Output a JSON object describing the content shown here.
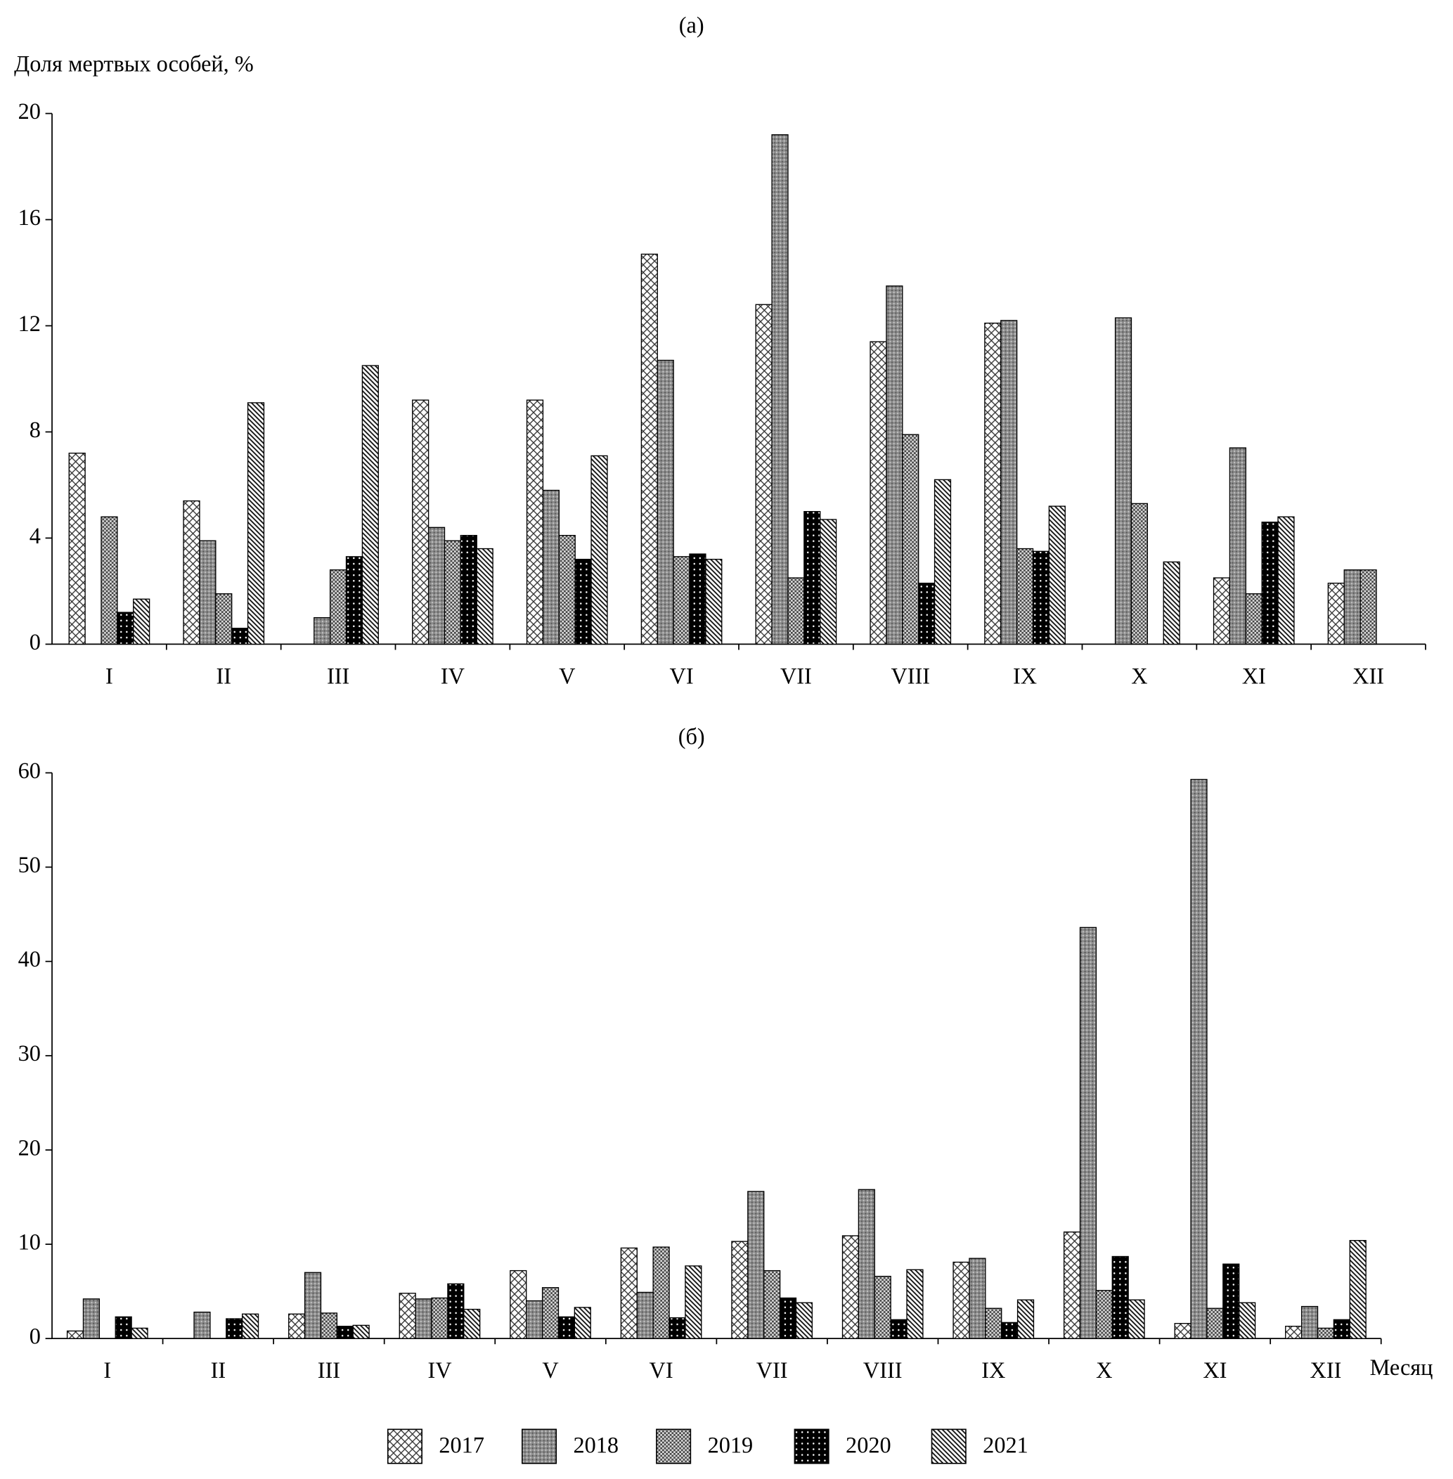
{
  "chart_data": [
    {
      "type": "bar",
      "title": "(a)",
      "y_label": "Доля мертвых особей, %",
      "categories": [
        "I",
        "II",
        "III",
        "IV",
        "V",
        "VI",
        "VII",
        "VIII",
        "IX",
        "X",
        "XI",
        "XII"
      ],
      "series": [
        {
          "pattern": "crosshatch",
          "values": [
            7.2,
            5.4,
            null,
            9.2,
            9.2,
            14.7,
            12.8,
            11.4,
            12.1,
            null,
            2.5,
            2.3
          ]
        },
        {
          "pattern": "graydots",
          "values": [
            null,
            3.9,
            1.0,
            4.4,
            5.8,
            10.7,
            19.2,
            13.5,
            12.2,
            12.3,
            7.4,
            2.8
          ]
        },
        {
          "pattern": "checker",
          "values": [
            4.8,
            1.9,
            2.8,
            3.9,
            4.1,
            3.3,
            2.5,
            7.9,
            3.6,
            5.3,
            1.9,
            2.8
          ]
        },
        {
          "pattern": "blackdots",
          "values": [
            1.2,
            0.6,
            3.3,
            4.1,
            3.2,
            3.4,
            5.0,
            2.3,
            3.5,
            null,
            4.6,
            null
          ]
        },
        {
          "pattern": "diagonal",
          "values": [
            1.7,
            9.1,
            10.5,
            3.6,
            7.1,
            3.2,
            4.7,
            6.2,
            5.2,
            3.1,
            4.8,
            null
          ]
        }
      ],
      "ylim": [
        0,
        20
      ],
      "yticks": [
        0,
        4,
        8,
        12,
        16,
        20
      ]
    },
    {
      "type": "bar",
      "title": "(б)",
      "x_label": "Месяц",
      "categories": [
        "I",
        "II",
        "III",
        "IV",
        "V",
        "VI",
        "VII",
        "VIII",
        "IX",
        "X",
        "XI",
        "XII"
      ],
      "series": [
        {
          "name": "2017",
          "pattern": "crosshatch",
          "values": [
            0.8,
            null,
            2.6,
            4.8,
            7.2,
            9.6,
            10.3,
            10.9,
            8.1,
            11.3,
            1.6,
            1.3
          ]
        },
        {
          "name": "2018",
          "pattern": "graydots",
          "values": [
            4.2,
            2.8,
            7.0,
            4.2,
            4.0,
            4.9,
            15.6,
            15.8,
            8.5,
            43.6,
            59.3,
            3.4
          ]
        },
        {
          "name": "2019",
          "pattern": "checker",
          "values": [
            null,
            null,
            2.7,
            4.3,
            5.4,
            9.7,
            7.2,
            6.6,
            3.2,
            5.1,
            3.2,
            1.1
          ]
        },
        {
          "name": "2020",
          "pattern": "blackdots",
          "values": [
            2.3,
            2.1,
            1.3,
            5.8,
            2.3,
            2.2,
            4.3,
            2.0,
            1.7,
            8.7,
            7.9,
            2.0
          ]
        },
        {
          "name": "2021",
          "pattern": "diagonal",
          "values": [
            1.1,
            2.6,
            1.4,
            3.1,
            3.3,
            7.7,
            3.8,
            7.3,
            4.1,
            4.1,
            3.8,
            10.4
          ]
        }
      ],
      "ylim": [
        0,
        60
      ],
      "yticks": [
        0,
        10,
        20,
        30,
        40,
        50,
        60
      ]
    }
  ]
}
